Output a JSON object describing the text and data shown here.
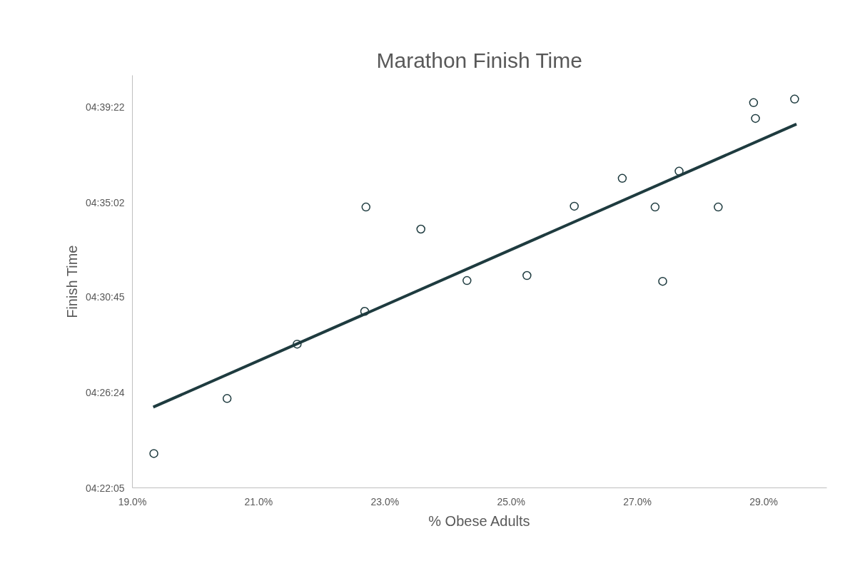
{
  "chart_data": {
    "type": "scatter",
    "title": "Marathon Finish Time",
    "xlabel": "% Obese Adults",
    "ylabel": "Finish Time",
    "xlim": [
      19,
      30
    ],
    "ylim": [
      4.36806,
      4.68
    ],
    "xticks": [
      {
        "value": 19,
        "label": "19.0%"
      },
      {
        "value": 21,
        "label": "21.0%"
      },
      {
        "value": 23,
        "label": "23.0%"
      },
      {
        "value": 25,
        "label": "25.0%"
      },
      {
        "value": 27,
        "label": "27.0%"
      },
      {
        "value": 29,
        "label": "29.0%"
      }
    ],
    "yticks": [
      {
        "value": 4.36806,
        "label": "04:22:05"
      },
      {
        "value": 4.44,
        "label": "04:26:24"
      },
      {
        "value": 4.5125,
        "label": "04:30:45"
      },
      {
        "value": 4.58389,
        "label": "04:35:02"
      },
      {
        "value": 4.65611,
        "label": "04:39:22"
      }
    ],
    "grid": false,
    "series": [
      {
        "marker": "circle",
        "color": "#1e3b3f",
        "x": [
          19.34,
          20.5,
          21.61,
          22.68,
          22.7,
          23.57,
          24.3,
          25.25,
          26.0,
          26.76,
          27.28,
          27.4,
          27.66,
          28.28,
          28.84,
          28.87,
          29.49
        ],
        "values": [
          4.394,
          4.4356,
          4.4767,
          4.5015,
          4.5804,
          4.5637,
          4.5248,
          4.5286,
          4.581,
          4.6021,
          4.5804,
          4.5242,
          4.6075,
          4.5804,
          4.6593,
          4.6474,
          4.662
        ]
      },
      {
        "type": "line",
        "marker": "none",
        "color": "#1e3b3f",
        "line_style": "solid",
        "x": [
          19.33,
          29.52
        ],
        "values": [
          4.4291,
          4.6431
        ]
      }
    ]
  }
}
